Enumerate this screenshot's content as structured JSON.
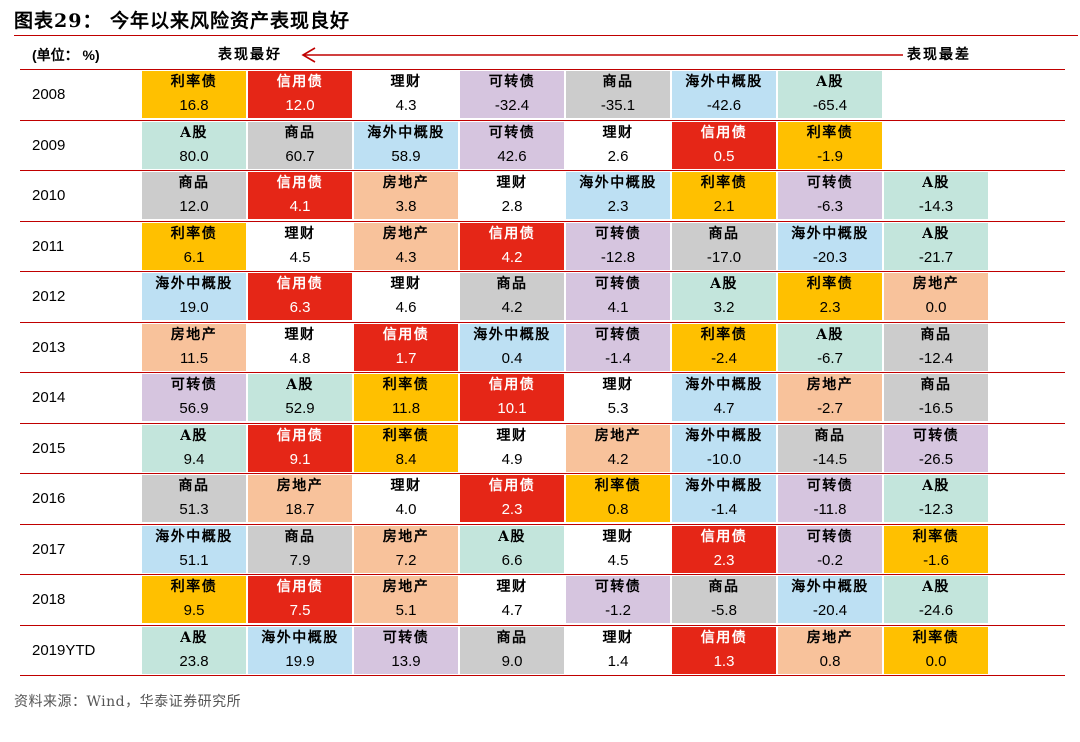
{
  "title": "图表29： 今年以来风险资产表现良好",
  "header": {
    "unit": "(单位： %)",
    "best": "表现最好",
    "worst": "表现最差"
  },
  "source": "资料来源：Wind，华泰证券研究所",
  "colors": {
    "利率债": "#ffc000",
    "信用债": "#e52617",
    "理财": "#ffffff",
    "可转债": "#d6c5df",
    "商品": "#cccccc",
    "海外中概股": "#bde0f3",
    "A股": "#c3e5dc",
    "房地产": "#f8c29b",
    "red_line": "#c00000"
  },
  "chart_data": {
    "type": "table",
    "title": "今年以来风险资产表现良好",
    "unit": "%",
    "columns_meaning": "ranked from best to worst",
    "rows": [
      {
        "year": "2008",
        "cells": [
          {
            "asset": "利率债",
            "value": "16.8"
          },
          {
            "asset": "信用债",
            "value": "12.0"
          },
          {
            "asset": "理财",
            "value": "4.3"
          },
          {
            "asset": "可转债",
            "value": "-32.4"
          },
          {
            "asset": "商品",
            "value": "-35.1"
          },
          {
            "asset": "海外中概股",
            "value": "-42.6"
          },
          {
            "asset": "A股",
            "value": "-65.4"
          }
        ]
      },
      {
        "year": "2009",
        "cells": [
          {
            "asset": "A股",
            "value": "80.0"
          },
          {
            "asset": "商品",
            "value": "60.7"
          },
          {
            "asset": "海外中概股",
            "value": "58.9"
          },
          {
            "asset": "可转债",
            "value": "42.6"
          },
          {
            "asset": "理财",
            "value": "2.6"
          },
          {
            "asset": "信用债",
            "value": "0.5"
          },
          {
            "asset": "利率债",
            "value": "-1.9"
          }
        ]
      },
      {
        "year": "2010",
        "cells": [
          {
            "asset": "商品",
            "value": "12.0"
          },
          {
            "asset": "信用债",
            "value": "4.1"
          },
          {
            "asset": "房地产",
            "value": "3.8"
          },
          {
            "asset": "理财",
            "value": "2.8"
          },
          {
            "asset": "海外中概股",
            "value": "2.3"
          },
          {
            "asset": "利率债",
            "value": "2.1"
          },
          {
            "asset": "可转债",
            "value": "-6.3"
          },
          {
            "asset": "A股",
            "value": "-14.3"
          }
        ]
      },
      {
        "year": "2011",
        "cells": [
          {
            "asset": "利率债",
            "value": "6.1"
          },
          {
            "asset": "理财",
            "value": "4.5"
          },
          {
            "asset": "房地产",
            "value": "4.3"
          },
          {
            "asset": "信用债",
            "value": "4.2"
          },
          {
            "asset": "可转债",
            "value": "-12.8"
          },
          {
            "asset": "商品",
            "value": "-17.0"
          },
          {
            "asset": "海外中概股",
            "value": "-20.3"
          },
          {
            "asset": "A股",
            "value": "-21.7"
          }
        ]
      },
      {
        "year": "2012",
        "cells": [
          {
            "asset": "海外中概股",
            "value": "19.0"
          },
          {
            "asset": "信用债",
            "value": "6.3"
          },
          {
            "asset": "理财",
            "value": "4.6"
          },
          {
            "asset": "商品",
            "value": "4.2"
          },
          {
            "asset": "可转债",
            "value": "4.1"
          },
          {
            "asset": "A股",
            "value": "3.2"
          },
          {
            "asset": "利率债",
            "value": "2.3"
          },
          {
            "asset": "房地产",
            "value": "0.0"
          }
        ]
      },
      {
        "year": "2013",
        "cells": [
          {
            "asset": "房地产",
            "value": "11.5"
          },
          {
            "asset": "理财",
            "value": "4.8"
          },
          {
            "asset": "信用债",
            "value": "1.7"
          },
          {
            "asset": "海外中概股",
            "value": "0.4"
          },
          {
            "asset": "可转债",
            "value": "-1.4"
          },
          {
            "asset": "利率债",
            "value": "-2.4"
          },
          {
            "asset": "A股",
            "value": "-6.7"
          },
          {
            "asset": "商品",
            "value": "-12.4"
          }
        ]
      },
      {
        "year": "2014",
        "cells": [
          {
            "asset": "可转债",
            "value": "56.9"
          },
          {
            "asset": "A股",
            "value": "52.9"
          },
          {
            "asset": "利率债",
            "value": "11.8"
          },
          {
            "asset": "信用债",
            "value": "10.1"
          },
          {
            "asset": "理财",
            "value": "5.3"
          },
          {
            "asset": "海外中概股",
            "value": "4.7"
          },
          {
            "asset": "房地产",
            "value": "-2.7"
          },
          {
            "asset": "商品",
            "value": "-16.5"
          }
        ]
      },
      {
        "year": "2015",
        "cells": [
          {
            "asset": "A股",
            "value": "9.4"
          },
          {
            "asset": "信用债",
            "value": "9.1"
          },
          {
            "asset": "利率债",
            "value": "8.4"
          },
          {
            "asset": "理财",
            "value": "4.9"
          },
          {
            "asset": "房地产",
            "value": "4.2"
          },
          {
            "asset": "海外中概股",
            "value": "-10.0"
          },
          {
            "asset": "商品",
            "value": "-14.5"
          },
          {
            "asset": "可转债",
            "value": "-26.5"
          }
        ]
      },
      {
        "year": "2016",
        "cells": [
          {
            "asset": "商品",
            "value": "51.3"
          },
          {
            "asset": "房地产",
            "value": "18.7"
          },
          {
            "asset": "理财",
            "value": "4.0"
          },
          {
            "asset": "信用债",
            "value": "2.3"
          },
          {
            "asset": "利率债",
            "value": "0.8"
          },
          {
            "asset": "海外中概股",
            "value": "-1.4"
          },
          {
            "asset": "可转债",
            "value": "-11.8"
          },
          {
            "asset": "A股",
            "value": "-12.3"
          }
        ]
      },
      {
        "year": "2017",
        "cells": [
          {
            "asset": "海外中概股",
            "value": "51.1"
          },
          {
            "asset": "商品",
            "value": "7.9"
          },
          {
            "asset": "房地产",
            "value": "7.2"
          },
          {
            "asset": "A股",
            "value": "6.6"
          },
          {
            "asset": "理财",
            "value": "4.5"
          },
          {
            "asset": "信用债",
            "value": "2.3"
          },
          {
            "asset": "可转债",
            "value": "-0.2"
          },
          {
            "asset": "利率债",
            "value": "-1.6"
          }
        ]
      },
      {
        "year": "2018",
        "cells": [
          {
            "asset": "利率债",
            "value": "9.5"
          },
          {
            "asset": "信用债",
            "value": "7.5"
          },
          {
            "asset": "房地产",
            "value": "5.1"
          },
          {
            "asset": "理财",
            "value": "4.7"
          },
          {
            "asset": "可转债",
            "value": "-1.2"
          },
          {
            "asset": "商品",
            "value": "-5.8"
          },
          {
            "asset": "海外中概股",
            "value": "-20.4"
          },
          {
            "asset": "A股",
            "value": "-24.6"
          }
        ]
      },
      {
        "year": "2019YTD",
        "cells": [
          {
            "asset": "A股",
            "value": "23.8"
          },
          {
            "asset": "海外中概股",
            "value": "19.9"
          },
          {
            "asset": "可转债",
            "value": "13.9"
          },
          {
            "asset": "商品",
            "value": "9.0"
          },
          {
            "asset": "理财",
            "value": "1.4"
          },
          {
            "asset": "信用债",
            "value": "1.3"
          },
          {
            "asset": "房地产",
            "value": "0.8"
          },
          {
            "asset": "利率债",
            "value": "0.0"
          }
        ]
      }
    ]
  }
}
